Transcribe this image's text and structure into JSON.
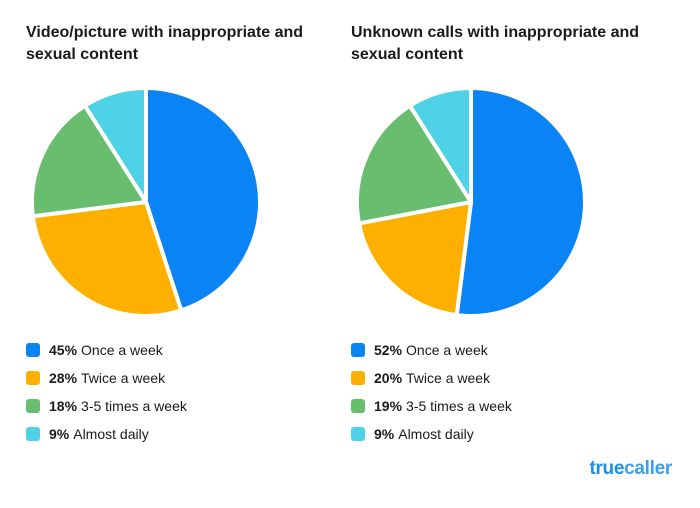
{
  "brand": {
    "logo_prefix": "true",
    "logo_suffix": "caller",
    "color": "#1990e8"
  },
  "chart_data": [
    {
      "type": "pie",
      "title": "Video/picture with inappropriate and sexual content",
      "categories": [
        "Once a week",
        "Twice a week",
        "3-5 times a week",
        "Almost daily"
      ],
      "values": [
        45,
        28,
        18,
        9
      ],
      "value_labels": [
        "45%",
        "28%",
        "18%",
        "9%"
      ],
      "colors": [
        "#0a84f5",
        "#fdb000",
        "#69bd6e",
        "#4ed2e7"
      ],
      "legend": "bottom"
    },
    {
      "type": "pie",
      "title": "Unknown calls with inappropriate and sexual content",
      "categories": [
        "Once a week",
        "Twice a week",
        "3-5 times a week",
        "Almost daily"
      ],
      "values": [
        52,
        20,
        19,
        9
      ],
      "value_labels": [
        "52%",
        "20%",
        "19%",
        "9%"
      ],
      "colors": [
        "#0a84f5",
        "#fdb000",
        "#69bd6e",
        "#4ed2e7"
      ],
      "legend": "bottom"
    }
  ]
}
